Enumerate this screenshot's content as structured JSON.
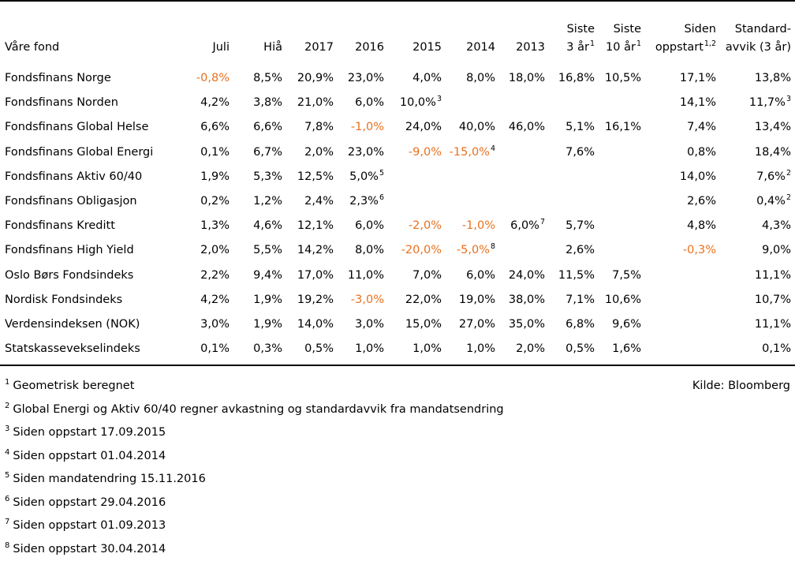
{
  "table": {
    "columns": [
      {
        "label": "Våre fond",
        "sup": ""
      },
      {
        "label": "Juli",
        "sup": ""
      },
      {
        "label": "Hiå",
        "sup": ""
      },
      {
        "label": "2017",
        "sup": ""
      },
      {
        "label": "2016",
        "sup": ""
      },
      {
        "label": "2015",
        "sup": ""
      },
      {
        "label": "2014",
        "sup": ""
      },
      {
        "label": "2013",
        "sup": ""
      },
      {
        "label": "Siste",
        "label2": "3 år",
        "sup": "1"
      },
      {
        "label": "Siste",
        "label2": "10 år",
        "sup": "1"
      },
      {
        "label": "Siden",
        "label2": "oppstart",
        "sup": "1,2"
      },
      {
        "label": "Standard-",
        "label2": "avvik (3 år)",
        "sup": ""
      }
    ],
    "rows": [
      {
        "name": "Fondsfinans Norge",
        "cells": [
          {
            "v": "-0,8%",
            "neg": true
          },
          {
            "v": "8,5%"
          },
          {
            "v": "20,9%"
          },
          {
            "v": "23,0%"
          },
          {
            "v": "4,0%"
          },
          {
            "v": "8,0%"
          },
          {
            "v": "18,0%"
          },
          {
            "v": "16,8%"
          },
          {
            "v": "10,5%"
          },
          {
            "v": "17,1%"
          },
          {
            "v": "13,8%"
          }
        ]
      },
      {
        "name": "Fondsfinans Norden",
        "cells": [
          {
            "v": "4,2%"
          },
          {
            "v": "3,8%"
          },
          {
            "v": "21,0%"
          },
          {
            "v": "6,0%"
          },
          {
            "v": "10,0%",
            "sup": "3"
          },
          {
            "v": ""
          },
          {
            "v": ""
          },
          {
            "v": ""
          },
          {
            "v": ""
          },
          {
            "v": "14,1%"
          },
          {
            "v": "11,7%",
            "sup": "3"
          }
        ]
      },
      {
        "name": "Fondsfinans Global Helse",
        "cells": [
          {
            "v": "6,6%"
          },
          {
            "v": "6,6%"
          },
          {
            "v": "7,8%"
          },
          {
            "v": "-1,0%",
            "neg": true
          },
          {
            "v": "24,0%"
          },
          {
            "v": "40,0%"
          },
          {
            "v": "46,0%"
          },
          {
            "v": "5,1%"
          },
          {
            "v": "16,1%"
          },
          {
            "v": "7,4%"
          },
          {
            "v": "13,4%"
          }
        ]
      },
      {
        "name": "Fondsfinans Global Energi",
        "cells": [
          {
            "v": "0,1%"
          },
          {
            "v": "6,7%"
          },
          {
            "v": "2,0%"
          },
          {
            "v": "23,0%"
          },
          {
            "v": "-9,0%",
            "neg": true
          },
          {
            "v": "-15,0%",
            "neg": true,
            "sup": "4"
          },
          {
            "v": ""
          },
          {
            "v": "7,6%"
          },
          {
            "v": ""
          },
          {
            "v": "0,8%"
          },
          {
            "v": "18,4%"
          }
        ]
      },
      {
        "name": "Fondsfinans Aktiv 60/40",
        "cells": [
          {
            "v": "1,9%"
          },
          {
            "v": "5,3%"
          },
          {
            "v": "12,5%"
          },
          {
            "v": "5,0%",
            "sup": "5"
          },
          {
            "v": ""
          },
          {
            "v": ""
          },
          {
            "v": ""
          },
          {
            "v": ""
          },
          {
            "v": ""
          },
          {
            "v": "14,0%"
          },
          {
            "v": "7,6%",
            "sup": "2"
          }
        ]
      },
      {
        "name": "Fondsfinans Obligasjon",
        "cells": [
          {
            "v": "0,2%"
          },
          {
            "v": "1,2%"
          },
          {
            "v": "2,4%"
          },
          {
            "v": "2,3%",
            "sup": "6"
          },
          {
            "v": ""
          },
          {
            "v": ""
          },
          {
            "v": ""
          },
          {
            "v": ""
          },
          {
            "v": ""
          },
          {
            "v": "2,6%"
          },
          {
            "v": "0,4%",
            "sup": "2"
          }
        ]
      },
      {
        "name": "Fondsfinans Kreditt",
        "cells": [
          {
            "v": "1,3%"
          },
          {
            "v": "4,6%"
          },
          {
            "v": "12,1%"
          },
          {
            "v": "6,0%"
          },
          {
            "v": "-2,0%",
            "neg": true
          },
          {
            "v": "-1,0%",
            "neg": true
          },
          {
            "v": "6,0%",
            "sup": "7"
          },
          {
            "v": "5,7%"
          },
          {
            "v": ""
          },
          {
            "v": "4,8%"
          },
          {
            "v": "4,3%"
          }
        ]
      },
      {
        "name": "Fondsfinans High Yield",
        "cells": [
          {
            "v": "2,0%"
          },
          {
            "v": "5,5%"
          },
          {
            "v": "14,2%"
          },
          {
            "v": "8,0%"
          },
          {
            "v": "-20,0%",
            "neg": true
          },
          {
            "v": "-5,0%",
            "neg": true,
            "sup": "8"
          },
          {
            "v": ""
          },
          {
            "v": "2,6%"
          },
          {
            "v": ""
          },
          {
            "v": "-0,3%",
            "neg": true
          },
          {
            "v": "9,0%"
          }
        ]
      },
      {
        "name": "Oslo Børs Fondsindeks",
        "cells": [
          {
            "v": "2,2%"
          },
          {
            "v": "9,4%"
          },
          {
            "v": "17,0%"
          },
          {
            "v": "11,0%"
          },
          {
            "v": "7,0%"
          },
          {
            "v": "6,0%"
          },
          {
            "v": "24,0%"
          },
          {
            "v": "11,5%"
          },
          {
            "v": "7,5%"
          },
          {
            "v": ""
          },
          {
            "v": "11,1%"
          }
        ]
      },
      {
        "name": "Nordisk Fondsindeks",
        "cells": [
          {
            "v": "4,2%"
          },
          {
            "v": "1,9%"
          },
          {
            "v": "19,2%"
          },
          {
            "v": "-3,0%",
            "neg": true
          },
          {
            "v": "22,0%"
          },
          {
            "v": "19,0%"
          },
          {
            "v": "38,0%"
          },
          {
            "v": "7,1%"
          },
          {
            "v": "10,6%"
          },
          {
            "v": ""
          },
          {
            "v": "10,7%"
          }
        ]
      },
      {
        "name": "Verdensindeksen (NOK)",
        "cells": [
          {
            "v": "3,0%"
          },
          {
            "v": "1,9%"
          },
          {
            "v": "14,0%"
          },
          {
            "v": "3,0%"
          },
          {
            "v": "15,0%"
          },
          {
            "v": "27,0%"
          },
          {
            "v": "35,0%"
          },
          {
            "v": "6,8%"
          },
          {
            "v": "9,6%"
          },
          {
            "v": ""
          },
          {
            "v": "11,1%"
          }
        ]
      },
      {
        "name": "Statskassevekselindeks",
        "cells": [
          {
            "v": "0,1%"
          },
          {
            "v": "0,3%"
          },
          {
            "v": "0,5%"
          },
          {
            "v": "1,0%"
          },
          {
            "v": "1,0%"
          },
          {
            "v": "1,0%"
          },
          {
            "v": "2,0%"
          },
          {
            "v": "0,5%"
          },
          {
            "v": "1,6%"
          },
          {
            "v": ""
          },
          {
            "v": "0,1%"
          }
        ]
      }
    ]
  },
  "source": "Kilde: Bloomberg",
  "footnotes": [
    {
      "mark": "1",
      "text": "Geometrisk beregnet"
    },
    {
      "mark": "2",
      "text": "Global Energi og Aktiv 60/40 regner avkastning og standardavvik fra mandatsendring"
    },
    {
      "mark": "3",
      "text": "Siden oppstart 17.09.2015"
    },
    {
      "mark": "4",
      "text": "Siden oppstart 01.04.2014"
    },
    {
      "mark": "5",
      "text": "Siden mandatendring 15.11.2016"
    },
    {
      "mark": "6",
      "text": "Siden oppstart 29.04.2016"
    },
    {
      "mark": "7",
      "text": "Siden oppstart 01.09.2013"
    },
    {
      "mark": "8",
      "text": "Siden oppstart 30.04.2014"
    }
  ],
  "colors": {
    "negative": "#e8711e",
    "text": "#000000"
  }
}
